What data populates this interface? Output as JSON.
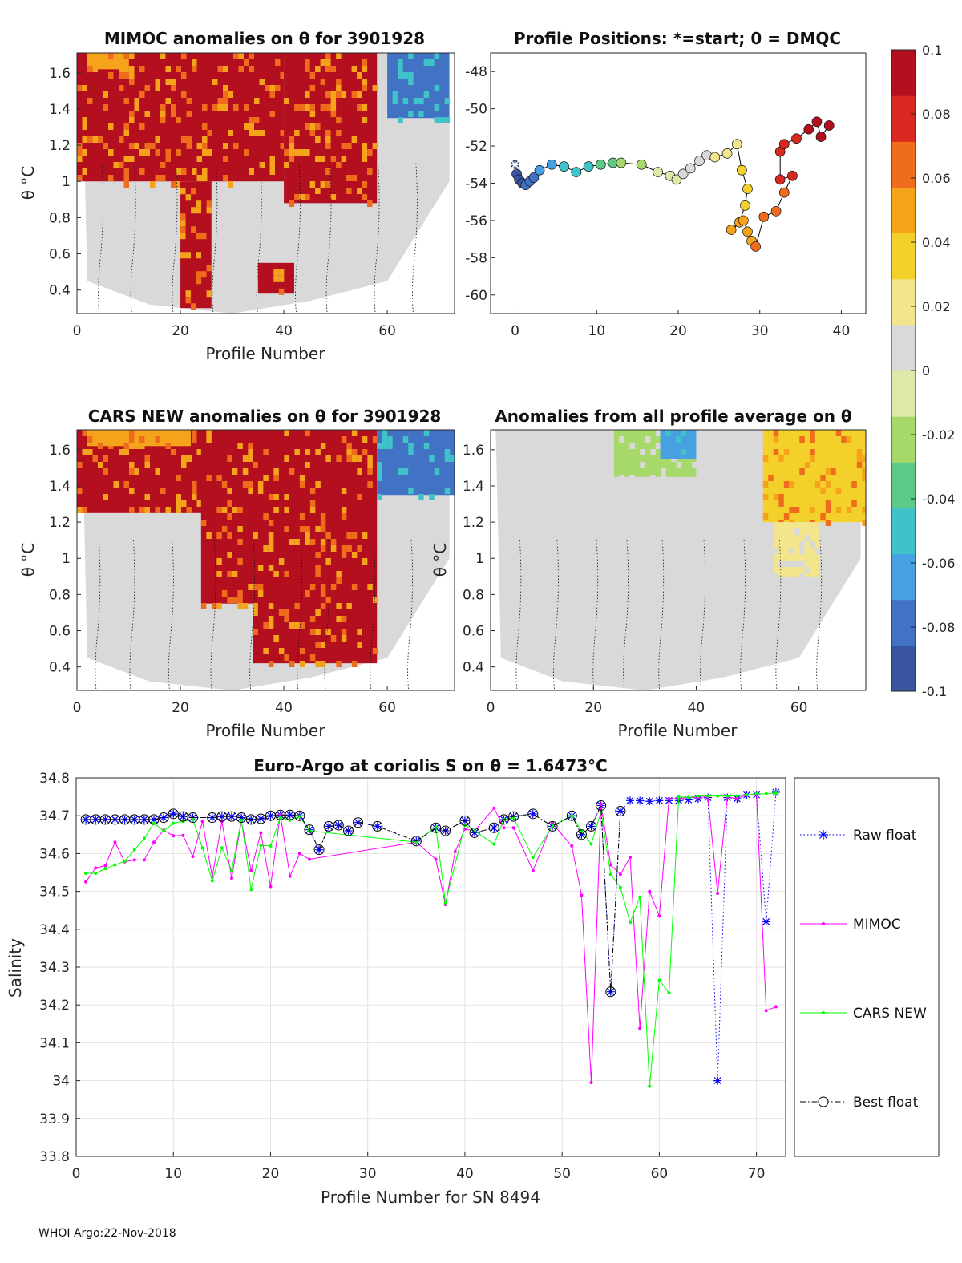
{
  "footer": "WHOI Argo:22-Nov-2018",
  "colorbar": {
    "ticks": [
      "0.1",
      "0.08",
      "0.06",
      "0.04",
      "0.02",
      "0",
      "-0.02",
      "-0.04",
      "-0.06",
      "-0.08",
      "-0.1"
    ],
    "colors": [
      "#3a559f",
      "#4172c4",
      "#47a0e2",
      "#3fc3c8",
      "#5ccb88",
      "#a6d96a",
      "#dde9a8",
      "#d9d9d9",
      "#f2e58c",
      "#f3d02a",
      "#f5a31b",
      "#ef6c1d",
      "#d8281f",
      "#b30f1f"
    ]
  },
  "chart_data": [
    {
      "type": "heatmap",
      "title": "MIMOC anomalies on θ  for 3901928",
      "xlabel": "Profile Number",
      "ylabel": "θ °C",
      "xlim": [
        0,
        73
      ],
      "ylim": [
        0.27,
        1.71
      ],
      "xticks": [
        "0",
        "20",
        "40",
        "60"
      ],
      "yticks": [
        "0.4",
        "0.6",
        "0.8",
        "1",
        "1.2",
        "1.4",
        "1.6"
      ],
      "background": "#d9d9d9",
      "blocks": [
        {
          "x0": 0,
          "x1": 40,
          "y0": 1.0,
          "y1": 1.71,
          "v": 0.1
        },
        {
          "x0": 40,
          "x1": 58,
          "y0": 0.88,
          "y1": 1.71,
          "v": 0.1
        },
        {
          "x0": 20,
          "x1": 26,
          "y0": 0.3,
          "y1": 1.0,
          "v": 0.1
        },
        {
          "x0": 35,
          "x1": 42,
          "y0": 0.38,
          "y1": 0.55,
          "v": 0.1
        },
        {
          "x0": 60,
          "x1": 72,
          "y0": 1.35,
          "y1": 1.71,
          "v": -0.08
        },
        {
          "x0": 2,
          "x1": 10,
          "y0": 1.62,
          "y1": 1.71,
          "v": 0.05
        }
      ]
    },
    {
      "type": "scatter",
      "title": "Profile Positions: *=start; 0 = DMQC",
      "xlim": [
        -3,
        43
      ],
      "ylim": [
        -61,
        -47
      ],
      "xticks": [
        "0",
        "10",
        "20",
        "30",
        "40"
      ],
      "yticks": [
        "-48",
        "-50",
        "-52",
        "-54",
        "-56",
        "-58",
        "-60"
      ],
      "x": [
        0,
        0.2,
        0.5,
        0.9,
        1.3,
        1.8,
        2.3,
        3.0,
        4.5,
        6.0,
        7.5,
        9.0,
        10.5,
        12.0,
        13.0,
        15.5,
        17.5,
        19.0,
        19.8,
        20.6,
        21.5,
        22.6,
        23.5,
        24.5,
        26.0,
        27.2,
        27.8,
        28.5,
        28.2,
        27.5,
        26.5,
        28.0,
        28.5,
        29.0,
        29.5,
        30.5,
        32.0,
        33.0,
        34.0,
        32.5,
        32.5,
        33.0,
        34.5,
        36.0,
        37.0,
        37.5,
        38.5
      ],
      "y": [
        -53.0,
        -53.5,
        -53.8,
        -54.0,
        -54.1,
        -53.9,
        -53.7,
        -53.3,
        -53.0,
        -53.1,
        -53.4,
        -53.1,
        -53.0,
        -52.9,
        -52.9,
        -53.0,
        -53.4,
        -53.6,
        -53.8,
        -53.5,
        -53.2,
        -52.8,
        -52.5,
        -52.6,
        -52.4,
        -51.9,
        -53.3,
        -54.3,
        -55.2,
        -56.1,
        -56.5,
        -56.0,
        -56.6,
        -57.1,
        -57.4,
        -55.8,
        -55.5,
        -54.5,
        -53.6,
        -53.8,
        -52.3,
        -51.9,
        -51.6,
        -51.1,
        -50.7,
        -51.5,
        -50.9
      ],
      "colorby": [
        0.0,
        0.02,
        0.04,
        0.06,
        0.08,
        0.1,
        0.12,
        0.15,
        0.18,
        0.22,
        0.25,
        0.28,
        0.31,
        0.34,
        0.36,
        0.4,
        0.44,
        0.47,
        0.48,
        0.5,
        0.52,
        0.55,
        0.57,
        0.59,
        0.61,
        0.63,
        0.66,
        0.69,
        0.71,
        0.73,
        0.74,
        0.76,
        0.77,
        0.78,
        0.79,
        0.8,
        0.82,
        0.84,
        0.86,
        0.87,
        0.88,
        0.9,
        0.92,
        0.94,
        0.96,
        0.98,
        1.0
      ]
    },
    {
      "type": "heatmap",
      "title": "CARS NEW anomalies on θ for 3901928",
      "xlabel": "Profile Number",
      "ylabel": "θ °C",
      "xlim": [
        0,
        73
      ],
      "ylim": [
        0.27,
        1.71
      ],
      "xticks": [
        "0",
        "20",
        "40",
        "60"
      ],
      "yticks": [
        "0.4",
        "0.6",
        "0.8",
        "1",
        "1.2",
        "1.4",
        "1.6"
      ],
      "background": "#d9d9d9",
      "blocks": [
        {
          "x0": 0,
          "x1": 26,
          "y0": 1.25,
          "y1": 1.71,
          "v": 0.1
        },
        {
          "x0": 24,
          "x1": 34,
          "y0": 0.75,
          "y1": 1.71,
          "v": 0.1
        },
        {
          "x0": 34,
          "x1": 58,
          "y0": 0.42,
          "y1": 1.71,
          "v": 0.1
        },
        {
          "x0": 58,
          "x1": 73,
          "y0": 1.35,
          "y1": 1.71,
          "v": -0.08
        },
        {
          "x0": 2,
          "x1": 22,
          "y0": 1.62,
          "y1": 1.71,
          "v": 0.05
        }
      ]
    },
    {
      "type": "heatmap",
      "title": "Anomalies from all profile average on θ",
      "xlabel": "Profile Number",
      "ylabel": "θ °C",
      "xlim": [
        0,
        73
      ],
      "ylim": [
        0.27,
        1.71
      ],
      "xticks": [
        "0",
        "20",
        "40",
        "60"
      ],
      "yticks": [
        "0.4",
        "0.6",
        "0.8",
        "1",
        "1.2",
        "1.4",
        "1.6"
      ],
      "background": "#d9d9d9",
      "blocks": [
        {
          "x0": 24,
          "x1": 40,
          "y0": 1.45,
          "y1": 1.71,
          "v": -0.02
        },
        {
          "x0": 33,
          "x1": 40,
          "y0": 1.55,
          "y1": 1.71,
          "v": -0.07
        },
        {
          "x0": 53,
          "x1": 73,
          "y0": 1.2,
          "y1": 1.71,
          "v": 0.04
        },
        {
          "x0": 55,
          "x1": 64,
          "y0": 0.9,
          "y1": 1.2,
          "v": 0.02
        }
      ]
    },
    {
      "type": "line",
      "title": "Euro-Argo at coriolis S on θ = 1.6473°C",
      "xlabel": "Profile Number for SN 8494",
      "ylabel": "Salinity",
      "xlim": [
        0,
        73
      ],
      "ylim": [
        33.8,
        34.8
      ],
      "xticks": [
        "0",
        "10",
        "20",
        "30",
        "40",
        "50",
        "60",
        "70"
      ],
      "yticks": [
        "34.8",
        "34.7",
        "34.6",
        "34.5",
        "34.4",
        "34.3",
        "34.2",
        "34.1",
        "34",
        "33.9",
        "33.8"
      ],
      "series": [
        {
          "name": "Raw float",
          "color": "#0000ff",
          "style": "dotted",
          "marker": "star",
          "x": [
            1,
            2,
            3,
            4,
            5,
            6,
            7,
            8,
            9,
            10,
            11,
            12,
            14,
            15,
            16,
            17,
            18,
            19,
            20,
            21,
            22,
            23,
            24,
            25,
            26,
            27,
            28,
            29,
            31,
            35,
            37,
            38,
            40,
            41,
            43,
            44,
            45,
            47,
            49,
            51,
            52,
            53,
            54,
            55,
            56,
            57,
            58,
            59,
            60,
            61,
            62,
            63,
            64,
            65,
            66,
            67,
            68,
            69,
            70,
            71,
            72
          ],
          "y": [
            34.69,
            34.69,
            34.69,
            34.69,
            34.69,
            34.69,
            34.69,
            34.69,
            34.695,
            34.705,
            34.698,
            34.695,
            34.695,
            34.698,
            34.698,
            34.695,
            34.69,
            34.692,
            34.7,
            34.702,
            34.702,
            34.7,
            34.663,
            34.61,
            34.672,
            34.675,
            34.66,
            34.682,
            34.672,
            34.633,
            34.668,
            34.66,
            34.687,
            34.655,
            34.668,
            34.69,
            34.698,
            34.705,
            34.672,
            34.7,
            34.65,
            34.672,
            34.727,
            34.235,
            34.712,
            34.74,
            34.74,
            34.738,
            34.74,
            34.74,
            34.74,
            34.742,
            34.745,
            34.748,
            34.0,
            34.748,
            34.745,
            34.755,
            34.755,
            34.42,
            34.762
          ]
        },
        {
          "name": "MIMOC",
          "color": "#ff00ff",
          "style": "solid",
          "marker": "dot",
          "x": [
            1,
            2,
            3,
            4,
            5,
            6,
            7,
            8,
            9,
            10,
            11,
            12,
            13,
            14,
            15,
            16,
            17,
            18,
            19,
            20,
            21,
            22,
            23,
            24,
            35,
            37,
            38,
            39,
            40,
            41,
            43,
            44,
            45,
            47,
            49,
            51,
            52,
            53,
            54,
            55,
            56,
            57,
            58,
            59,
            60,
            61,
            62,
            63,
            64,
            65,
            66,
            67,
            68,
            69,
            70,
            71,
            72
          ],
          "y": [
            34.525,
            34.562,
            34.568,
            34.63,
            34.578,
            34.583,
            34.583,
            34.63,
            34.662,
            34.647,
            34.648,
            34.592,
            34.685,
            34.538,
            34.685,
            34.535,
            34.685,
            34.555,
            34.655,
            34.513,
            34.703,
            34.54,
            34.6,
            34.585,
            34.63,
            34.585,
            34.465,
            34.605,
            34.665,
            34.66,
            34.72,
            34.668,
            34.668,
            34.555,
            34.68,
            34.62,
            34.49,
            33.995,
            34.73,
            34.57,
            34.545,
            34.59,
            34.138,
            34.5,
            34.435,
            34.745,
            34.745,
            34.748,
            34.748,
            34.75,
            34.495,
            34.75,
            34.745,
            34.755,
            34.755,
            34.185,
            34.195
          ]
        },
        {
          "name": "CARS NEW",
          "color": "#00ff00",
          "style": "solid",
          "marker": "dot",
          "x": [
            1,
            2,
            3,
            4,
            5,
            6,
            7,
            8,
            9,
            10,
            11,
            12,
            13,
            14,
            15,
            16,
            17,
            18,
            19,
            20,
            21,
            22,
            23,
            24,
            35,
            37,
            38,
            40,
            41,
            43,
            44,
            45,
            47,
            49,
            51,
            52,
            53,
            54,
            55,
            56,
            57,
            58,
            59,
            60,
            61,
            62,
            63,
            64,
            65,
            66,
            67,
            68,
            69,
            70,
            71,
            72
          ],
          "y": [
            34.548,
            34.548,
            34.56,
            34.57,
            34.58,
            34.61,
            34.64,
            34.68,
            34.66,
            34.68,
            34.685,
            34.69,
            34.615,
            34.528,
            34.615,
            34.555,
            34.688,
            34.505,
            34.622,
            34.62,
            34.695,
            34.688,
            34.698,
            34.66,
            34.63,
            34.67,
            34.47,
            34.675,
            34.66,
            34.625,
            34.69,
            34.695,
            34.59,
            34.673,
            34.7,
            34.66,
            34.625,
            34.71,
            34.545,
            34.51,
            34.418,
            34.485,
            33.985,
            34.265,
            34.232,
            34.75,
            34.748,
            34.752,
            34.752,
            34.752,
            34.752,
            34.752,
            34.755,
            34.758,
            34.758,
            34.76
          ]
        },
        {
          "name": "Best float",
          "color": "#000000",
          "style": "dashdot",
          "marker": "circle",
          "x": [
            1,
            2,
            3,
            4,
            5,
            6,
            7,
            8,
            9,
            10,
            11,
            12,
            14,
            15,
            16,
            17,
            18,
            19,
            20,
            21,
            22,
            23,
            24,
            25,
            26,
            27,
            28,
            29,
            31,
            35,
            37,
            38,
            40,
            41,
            43,
            44,
            45,
            47,
            49,
            51,
            52,
            53,
            54,
            55,
            56
          ],
          "y": [
            34.69,
            34.69,
            34.69,
            34.69,
            34.69,
            34.69,
            34.69,
            34.69,
            34.695,
            34.705,
            34.698,
            34.695,
            34.695,
            34.698,
            34.698,
            34.695,
            34.69,
            34.692,
            34.7,
            34.702,
            34.702,
            34.7,
            34.663,
            34.61,
            34.672,
            34.675,
            34.66,
            34.682,
            34.672,
            34.633,
            34.668,
            34.66,
            34.687,
            34.655,
            34.668,
            34.69,
            34.698,
            34.705,
            34.672,
            34.7,
            34.65,
            34.672,
            34.727,
            34.235,
            34.712
          ]
        }
      ]
    }
  ]
}
